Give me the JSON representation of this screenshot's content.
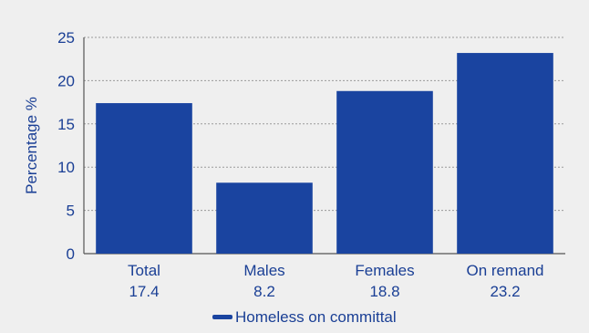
{
  "chart_data": {
    "type": "bar",
    "categories": [
      "Total",
      "Males",
      "Females",
      "On remand"
    ],
    "category_value_labels": [
      "17.4",
      "8.2",
      "18.8",
      "23.2"
    ],
    "series": [
      {
        "name": "Homeless on committal",
        "values": [
          17.4,
          8.2,
          18.8,
          23.2
        ],
        "color": "#1a44a0"
      }
    ],
    "ylabel": "Percentage %",
    "xlabel": "",
    "ylim": [
      0,
      25
    ],
    "yticks": [
      0,
      5,
      10,
      15,
      20,
      25
    ],
    "grid": "horizontal-dotted",
    "legend_position": "bottom-center"
  },
  "colors": {
    "background": "#efefef",
    "bar": "#1a44a0",
    "text": "#1a3f95",
    "grid": "#9a9a9a"
  }
}
